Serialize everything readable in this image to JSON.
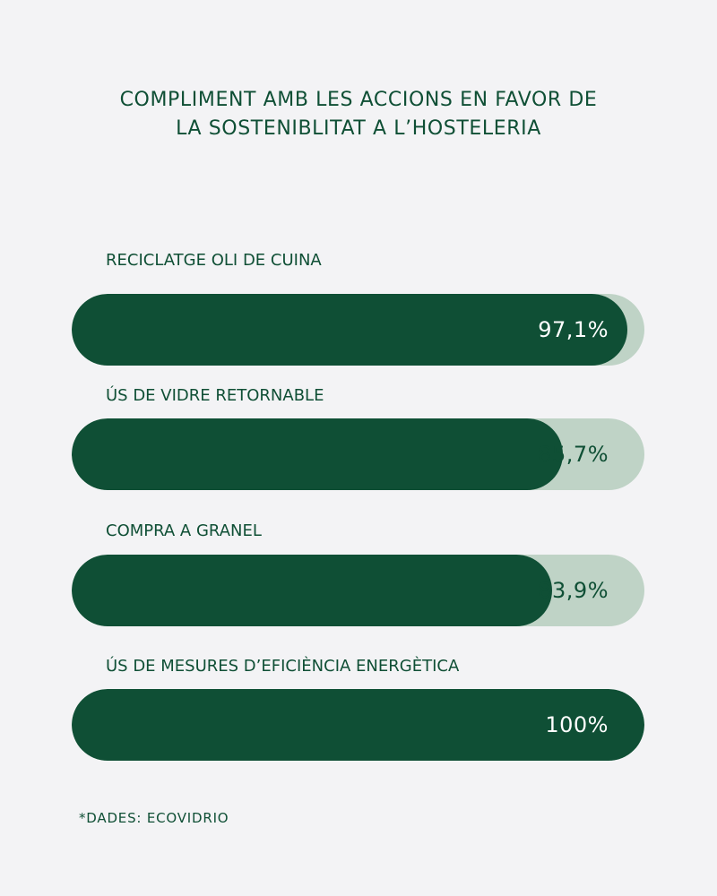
{
  "title": {
    "line1": "COMPLIMENT AMB LES ACCIONS EN FAVOR DE",
    "line2": "LA SOSTENIBLITAT A L’HOSTELERIA"
  },
  "chart_data": {
    "type": "bar",
    "orientation": "horizontal",
    "title": "COMPLIMENT AMB LES ACCIONS EN FAVOR DE LA SOSTENIBLITAT A L’HOSTELERIA",
    "categories": [
      "RECICLATGE OLI DE CUINA",
      "ÚS DE VIDRE RETORNABLE",
      "COMPRA A GRANEL",
      "ÚS DE MESURES D’EFICIÈNCIA ENERGÈTICA"
    ],
    "values": [
      97.1,
      85.7,
      83.9,
      100
    ],
    "value_labels": [
      "97,1%",
      "85,7%",
      "83,9%",
      "100%"
    ],
    "xlim": [
      0,
      100
    ],
    "grid": false,
    "legend": "none"
  },
  "colors": {
    "background": "#f3f3f5",
    "fill": "#0f4f35",
    "track": "#bfd3c6",
    "text": "#0f4f35",
    "value_on_fill": "#ffffff"
  },
  "source": "*DADES: ECOVIDRIO"
}
